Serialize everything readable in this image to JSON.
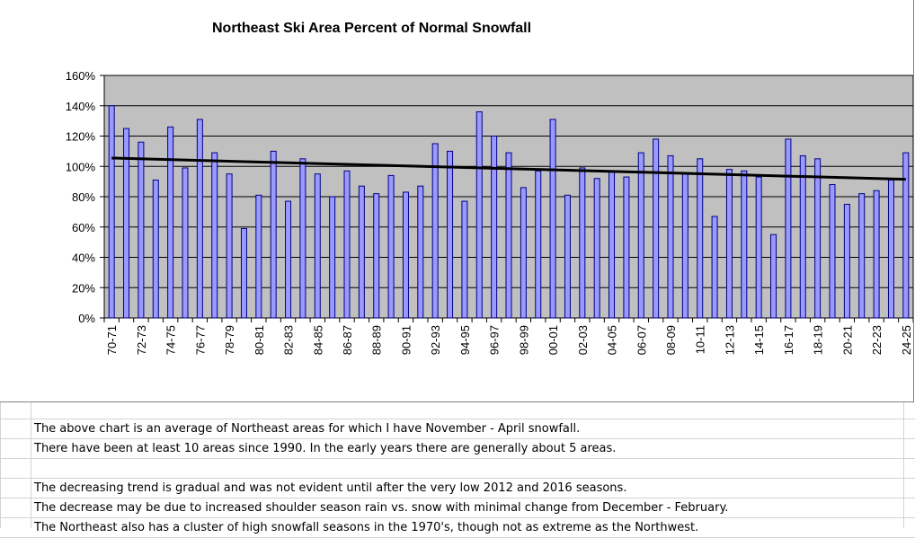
{
  "chart_data": {
    "type": "bar",
    "title": "Northeast Ski Area Percent of Normal Snowfall",
    "xlabel": "",
    "ylabel": "",
    "ylim": [
      0,
      160
    ],
    "y_ticks": [
      "0%",
      "20%",
      "40%",
      "60%",
      "80%",
      "100%",
      "120%",
      "140%",
      "160%"
    ],
    "grid": true,
    "legend": "none",
    "categories": [
      "70-71",
      "71-72",
      "72-73",
      "73-74",
      "74-75",
      "75-76",
      "76-77",
      "77-78",
      "78-79",
      "79-80",
      "80-81",
      "81-82",
      "82-83",
      "83-84",
      "84-85",
      "85-86",
      "86-87",
      "87-88",
      "88-89",
      "89-90",
      "90-91",
      "91-92",
      "92-93",
      "93-94",
      "94-95",
      "95-96",
      "96-97",
      "97-98",
      "98-99",
      "99-00",
      "00-01",
      "01-02",
      "02-03",
      "03-04",
      "04-05",
      "05-06",
      "06-07",
      "07-08",
      "08-09",
      "09-10",
      "10-11",
      "11-12",
      "12-13",
      "13-14",
      "14-15",
      "15-16",
      "16-17",
      "17-18",
      "18-19",
      "19-20",
      "20-21",
      "21-22",
      "22-23",
      "23-24",
      "24-25"
    ],
    "tick_labels": [
      "70-71",
      "72-73",
      "74-75",
      "76-77",
      "78-79",
      "80-81",
      "82-83",
      "84-85",
      "86-87",
      "88-89",
      "90-91",
      "92-93",
      "94-95",
      "96-97",
      "98-99",
      "00-01",
      "02-03",
      "04-05",
      "06-07",
      "08-09",
      "10-11",
      "12-13",
      "14-15",
      "16-17",
      "18-19",
      "20-21",
      "22-23",
      "24-25"
    ],
    "values": [
      140,
      125,
      116,
      91,
      126,
      99,
      131,
      109,
      95,
      59,
      81,
      110,
      77,
      105,
      95,
      80,
      97,
      87,
      82,
      94,
      83,
      87,
      115,
      110,
      77,
      136,
      120,
      109,
      86,
      97,
      131,
      81,
      99,
      92,
      97,
      93,
      109,
      118,
      107,
      95,
      105,
      67,
      98,
      97,
      93,
      55,
      118,
      107,
      105,
      88,
      75,
      82,
      84,
      91,
      109
    ],
    "trendline": {
      "start": 105.5,
      "end": 91.5
    },
    "colors": {
      "bar": "#9999ff",
      "bar_edge": "#000080",
      "plot_bg": "#c0c0c0",
      "trend": "#000000"
    }
  },
  "notes": [
    "The above chart is an average of Northeast areas for which I have November - April snowfall.",
    "There have been at least 10 areas since 1990.   In the early years there are generally about 5 areas.",
    "",
    "The decreasing trend is gradual and was not evident until after the very low 2012 and 2016 seasons.",
    "The decrease may be due to increased shoulder season rain vs. snow with minimal change from December - February.",
    "The Northeast also has a cluster of high snowfall seasons in the 1970's, though not as extreme as the Northwest."
  ]
}
